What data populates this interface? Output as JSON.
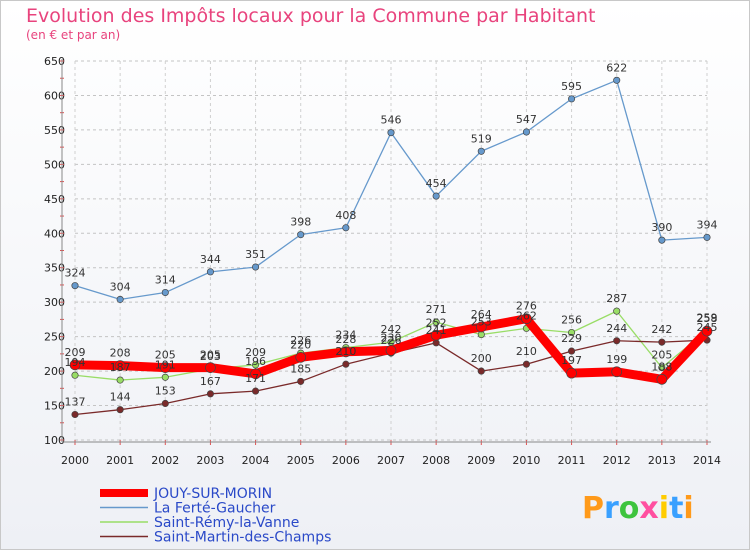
{
  "chart_data": {
    "type": "line",
    "title": "Evolution des Impôts locaux pour la Commune par Habitant",
    "subtitle": "(en € et par an)",
    "x": [
      "2000",
      "2001",
      "2002",
      "2003",
      "2004",
      "2005",
      "2006",
      "2007",
      "2008",
      "2009",
      "2010",
      "2011",
      "2012",
      "2013",
      "2014"
    ],
    "ylim": [
      100,
      650
    ],
    "yticks": [
      100,
      150,
      200,
      250,
      300,
      350,
      400,
      450,
      500,
      550,
      600,
      650
    ],
    "grid": "horizontal dashed",
    "legend": "bottom-left",
    "series": [
      {
        "name": "JOUY-SUR-MORIN",
        "color": "#ff0000",
        "values": [
          209,
          208,
          205,
          205,
          196,
          220,
          228,
          230,
          252,
          264,
          276,
          197,
          199,
          188,
          258
        ]
      },
      {
        "name": "La Ferté-Gaucher",
        "color": "#6699cc",
        "values": [
          324,
          304,
          314,
          344,
          351,
          398,
          408,
          546,
          454,
          519,
          547,
          595,
          622,
          390,
          394
        ]
      },
      {
        "name": "Saint-Rémy-la-Vanne",
        "color": "#99dd66",
        "values": [
          194,
          187,
          191,
          203,
          209,
          226,
          234,
          242,
          271,
          253,
          262,
          256,
          287,
          205,
          259
        ]
      },
      {
        "name": "Saint-Martin-des-Champs",
        "color": "#7a2a2a",
        "values": [
          137,
          144,
          153,
          167,
          171,
          185,
          210,
          226,
          241,
          200,
          210,
          229,
          244,
          242,
          245
        ]
      }
    ]
  },
  "logo": {
    "text": "Proxiti",
    "letters": [
      "P",
      "r",
      "o",
      "x",
      "i",
      "t",
      "i"
    ],
    "colors": [
      "#ff9a1a",
      "#39a0ff",
      "#3ec43e",
      "#ff4fa0",
      "#ffcc00",
      "#39a0ff",
      "#ff9a1a"
    ]
  }
}
